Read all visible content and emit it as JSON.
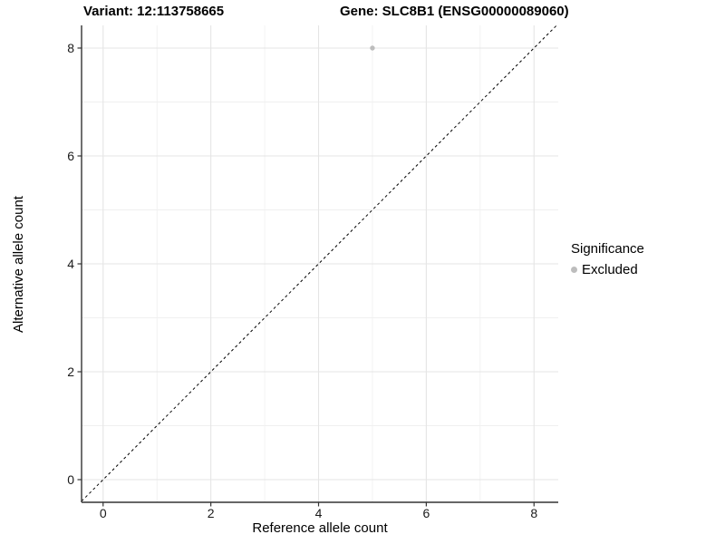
{
  "chart_data": {
    "type": "scatter",
    "title_variant": "Variant: 12:113758665",
    "title_gene": "Gene: SLC8B1 (ENSG00000089060)",
    "xlabel": "Reference allele count",
    "ylabel": "Alternative allele count",
    "xlim": [
      -0.4,
      8.45
    ],
    "ylim": [
      -0.42,
      8.42
    ],
    "xticks": [
      0,
      2,
      4,
      6,
      8
    ],
    "yticks": [
      0,
      2,
      4,
      6,
      8
    ],
    "x_minor_ticks": [
      1,
      3,
      5,
      7
    ],
    "y_minor_ticks": [
      1,
      3,
      5,
      7
    ],
    "grid": true,
    "points": [
      {
        "x": 5,
        "y": 8,
        "significance": "Excluded"
      }
    ],
    "reference_line": {
      "type": "identity",
      "slope": 1,
      "intercept": 0,
      "dashed": true
    },
    "legend": {
      "title": "Significance",
      "position": "right",
      "items": [
        {
          "label": "Excluded",
          "color": "#bdbdbd"
        }
      ]
    },
    "colors": {
      "point": "#bdbdbd",
      "grid_major": "#e5e5e5",
      "grid_minor": "#f0f0f0",
      "axis": "#333333",
      "reference_line": "#000000",
      "background": "#ffffff"
    }
  }
}
